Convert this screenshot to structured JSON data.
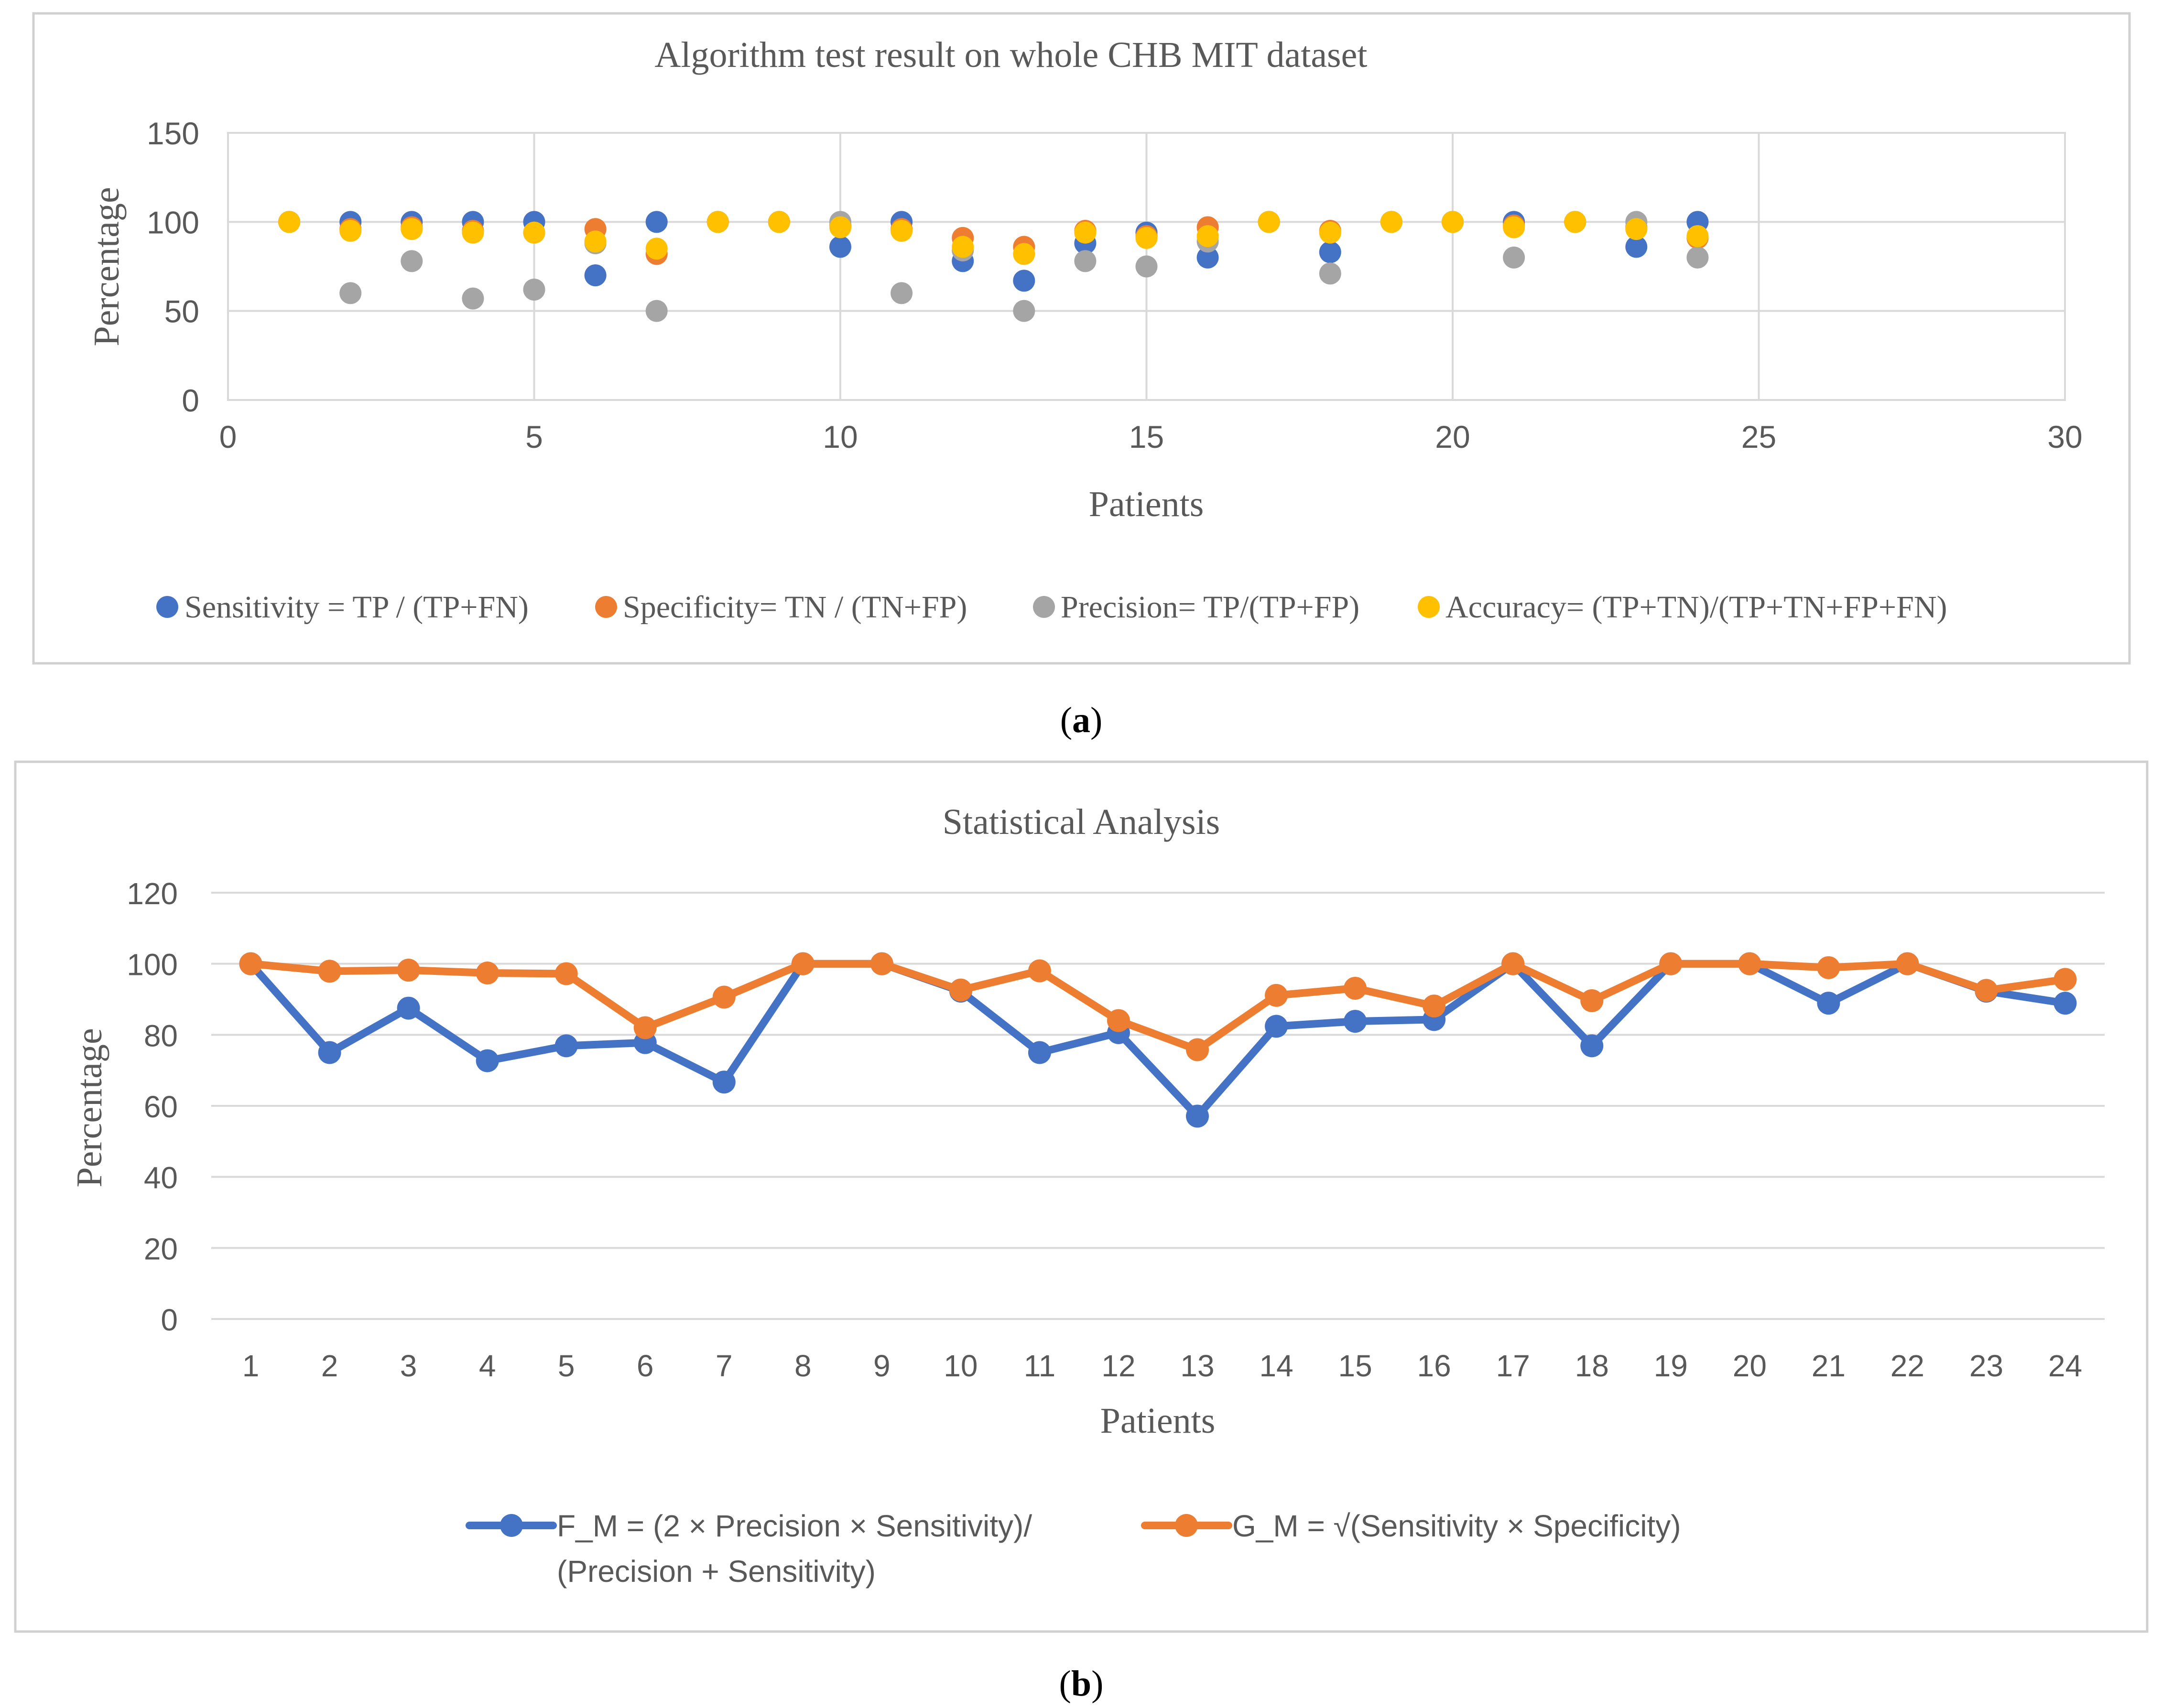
{
  "colors": {
    "blue": "#4472c4",
    "orange": "#ed7d31",
    "gray": "#a5a5a5",
    "yellow": "#ffc000",
    "grid": "#d9d9d9",
    "axis": "#bfbfbf",
    "text": "#595959",
    "frame": "#d0d0d0"
  },
  "chart_data": [
    {
      "type": "scatter",
      "panel_label": "(a)",
      "panel_letter": "a",
      "title": "Algorithm test result on whole CHB MIT dataset",
      "xlabel": "Patients",
      "ylabel": "Percentage",
      "xlim": [
        0,
        30
      ],
      "ylim": [
        0,
        150
      ],
      "x_ticks": [
        0,
        5,
        10,
        15,
        20,
        25,
        30
      ],
      "y_ticks": [
        0,
        50,
        100,
        150
      ],
      "legend_position": "bottom",
      "series": [
        {
          "name": "Sensitivity = TP / (TP+FN)",
          "color": "#4472c4",
          "x": [
            1,
            2,
            3,
            4,
            5,
            6,
            7,
            8,
            9,
            10,
            11,
            12,
            13,
            14,
            15,
            16,
            17,
            18,
            19,
            20,
            21,
            22,
            23,
            24
          ],
          "y": [
            100,
            100,
            100,
            100,
            100,
            70,
            100,
            100,
            100,
            86,
            100,
            78,
            67,
            88,
            94,
            80,
            100,
            83,
            100,
            100,
            100,
            100,
            86,
            100
          ]
        },
        {
          "name": "Specificity= TN / (TN+FP)",
          "color": "#ed7d31",
          "x": [
            1,
            2,
            3,
            4,
            5,
            6,
            7,
            8,
            9,
            10,
            11,
            12,
            13,
            14,
            15,
            16,
            17,
            18,
            19,
            20,
            21,
            22,
            23,
            24
          ],
          "y": [
            100,
            96,
            97,
            95,
            94,
            96,
            82,
            100,
            100,
            98,
            96,
            91,
            86,
            95,
            92,
            97,
            100,
            95,
            100,
            100,
            98,
            100,
            97,
            91
          ]
        },
        {
          "name": "Precision= TP/(TP+FP)",
          "color": "#a5a5a5",
          "x": [
            1,
            2,
            3,
            4,
            5,
            6,
            7,
            8,
            9,
            10,
            11,
            12,
            13,
            14,
            15,
            16,
            17,
            18,
            19,
            20,
            21,
            22,
            23,
            24
          ],
          "y": [
            100,
            60,
            78,
            57,
            62,
            88,
            50,
            100,
            100,
            100,
            60,
            84,
            50,
            78,
            75,
            89,
            100,
            71,
            100,
            100,
            80,
            100,
            100,
            80
          ]
        },
        {
          "name": "Accuracy= (TP+TN)/(TP+TN+FP+FN)",
          "color": "#ffc000",
          "x": [
            1,
            2,
            3,
            4,
            5,
            6,
            7,
            8,
            9,
            10,
            11,
            12,
            13,
            14,
            15,
            16,
            17,
            18,
            19,
            20,
            21,
            22,
            23,
            24
          ],
          "y": [
            100,
            95,
            96,
            94,
            94,
            89,
            85,
            100,
            100,
            97,
            95,
            86,
            82,
            94,
            91,
            92,
            100,
            94,
            100,
            100,
            97,
            100,
            96,
            92
          ]
        }
      ]
    },
    {
      "type": "line",
      "panel_label": "(b)",
      "panel_letter": "b",
      "title": "Statistical Analysis",
      "xlabel": "Patients",
      "ylabel": "Percentage",
      "ylim": [
        0,
        120
      ],
      "y_ticks": [
        0,
        20,
        40,
        60,
        80,
        100,
        120
      ],
      "categories": [
        "1",
        "2",
        "3",
        "4",
        "5",
        "6",
        "7",
        "8",
        "9",
        "10",
        "11",
        "12",
        "13",
        "14",
        "15",
        "16",
        "17",
        "18",
        "19",
        "20",
        "21",
        "22",
        "23",
        "24"
      ],
      "legend_position": "bottom",
      "series": [
        {
          "name_lines": [
            "F_M = (2 × Precision × Sensitivity)/",
            "(Precision + Sensitivity)"
          ],
          "color": "#4472c4",
          "values": [
            100,
            75,
            87.5,
            72.7,
            76.9,
            77.8,
            66.7,
            100,
            100,
            92.3,
            75,
            80.6,
            57.1,
            82.4,
            83.8,
            84.3,
            100,
            76.9,
            100,
            100,
            88.9,
            100,
            92.3,
            88.9
          ]
        },
        {
          "name_lines": [
            "G_M = √(Sensitivity × Specificity)"
          ],
          "color": "#ed7d31",
          "values": [
            100,
            97.9,
            98.2,
            97.4,
            97.2,
            82,
            90.6,
            100,
            100,
            92.6,
            98,
            84,
            75.8,
            91.1,
            93.1,
            88.1,
            100,
            89.6,
            100,
            100,
            98.9,
            100,
            92.5,
            95.6
          ]
        }
      ]
    }
  ]
}
